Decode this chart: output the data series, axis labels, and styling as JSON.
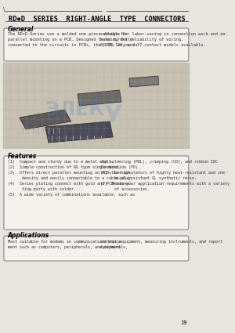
{
  "title": "RD✱D  SERIES  RIGHT-ANGLE  TYPE  CONNECTORS",
  "bg_color": "#f0ede8",
  "page_bg": "#e8e4de",
  "general_heading": "General",
  "general_text_left": "The RD×D-Series use a molded one-piece design for parallel mounting on a PCB. Designed to be directly connected to the circuits in PCBs, the RDPD-Series is",
  "general_text_right": "suitable for labor-saving in connection work and enhancing the reliability of wiring.\n8, 15, 26, and 37-contact models available.",
  "features_heading": "Features",
  "features_items": [
    "(1)  Compact and sturdy due to a metal shell.",
    "(2)  Simple construction of RD type single mold.",
    "(3)  Offers direct parallel mounting on PCBs in high density and easily connectable to a cable plug.",
    "(4)  Series plating connect with gold and PCB-connecting parts with solder.",
    "(5)  A wide variety of combinations available, such as"
  ],
  "features_items_right": [
    "dip soldering (PDL), crimping (CD), and ribbon IDC termination (FD).",
    "(6)  Uses insulators of highly heat-resistant and chemical-resistant GL synthetic resin.",
    "(7)  Meets your application requirements with a variety of accessories."
  ],
  "applications_heading": "Applications",
  "applications_text_left": "Most suitable for modems in communications equipment such as computers, peripherals, and terminals,",
  "applications_text_right": "control equipment, measuring instruments, and report equipment.",
  "page_number": "19",
  "line_color": "#555555",
  "box_border_color": "#888888",
  "heading_color": "#000000",
  "text_color": "#333333",
  "image_placeholder_color": "#c8c0b0"
}
